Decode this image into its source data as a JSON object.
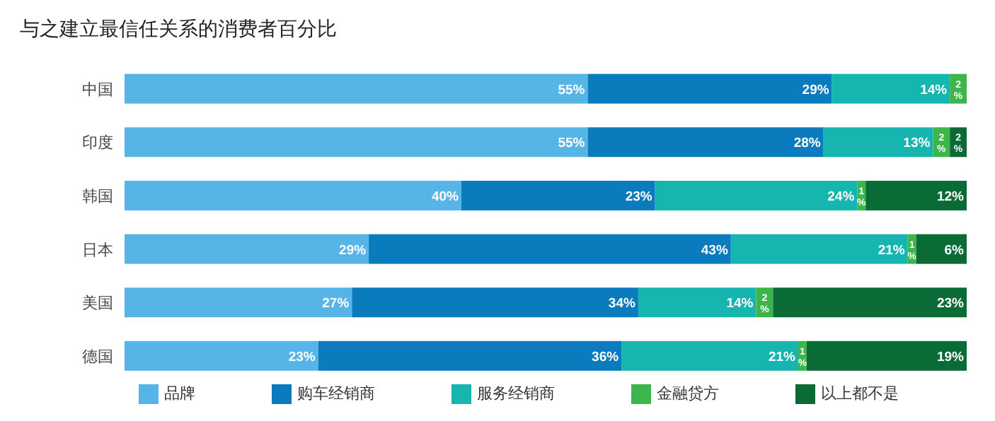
{
  "chart_data": {
    "type": "bar",
    "orientation": "horizontal",
    "stacked": true,
    "title": "与之建立最信任关系的消费者百分比",
    "categories": [
      "中国",
      "印度",
      "韩国",
      "日本",
      "美国",
      "德国"
    ],
    "tick_labels": "y",
    "legend": "bottom",
    "series": [
      {
        "name": "品牌",
        "color": "#56b4e6",
        "values": [
          55,
          55,
          40,
          29,
          27,
          23
        ],
        "value_labels": [
          "55%",
          "55%",
          "40%",
          "29%",
          "27%",
          "23%"
        ]
      },
      {
        "name": "购车经销商",
        "color": "#0a7bbd",
        "values": [
          29,
          28,
          23,
          43,
          34,
          36
        ],
        "value_labels": [
          "29%",
          "28%",
          "23%",
          "43%",
          "34%",
          "36%"
        ]
      },
      {
        "name": "服务经销商",
        "color": "#17b5b0",
        "values": [
          14,
          13,
          24,
          21,
          14,
          21
        ],
        "value_labels": [
          "14%",
          "13%",
          "24%",
          "21%",
          "14%",
          "21%"
        ]
      },
      {
        "name": "金融贷方",
        "color": "#3cb54a",
        "values": [
          2,
          2,
          1,
          1,
          2,
          1
        ],
        "value_labels": [
          "2%",
          "2%",
          "1%",
          "1%",
          "2%",
          "1%"
        ]
      },
      {
        "name": "以上都不是",
        "color": "#0b6b37",
        "values": [
          null,
          2,
          12,
          6,
          23,
          19
        ],
        "value_labels": [
          null,
          "2%",
          "12%",
          "6%",
          "23%",
          "19%"
        ]
      }
    ]
  }
}
